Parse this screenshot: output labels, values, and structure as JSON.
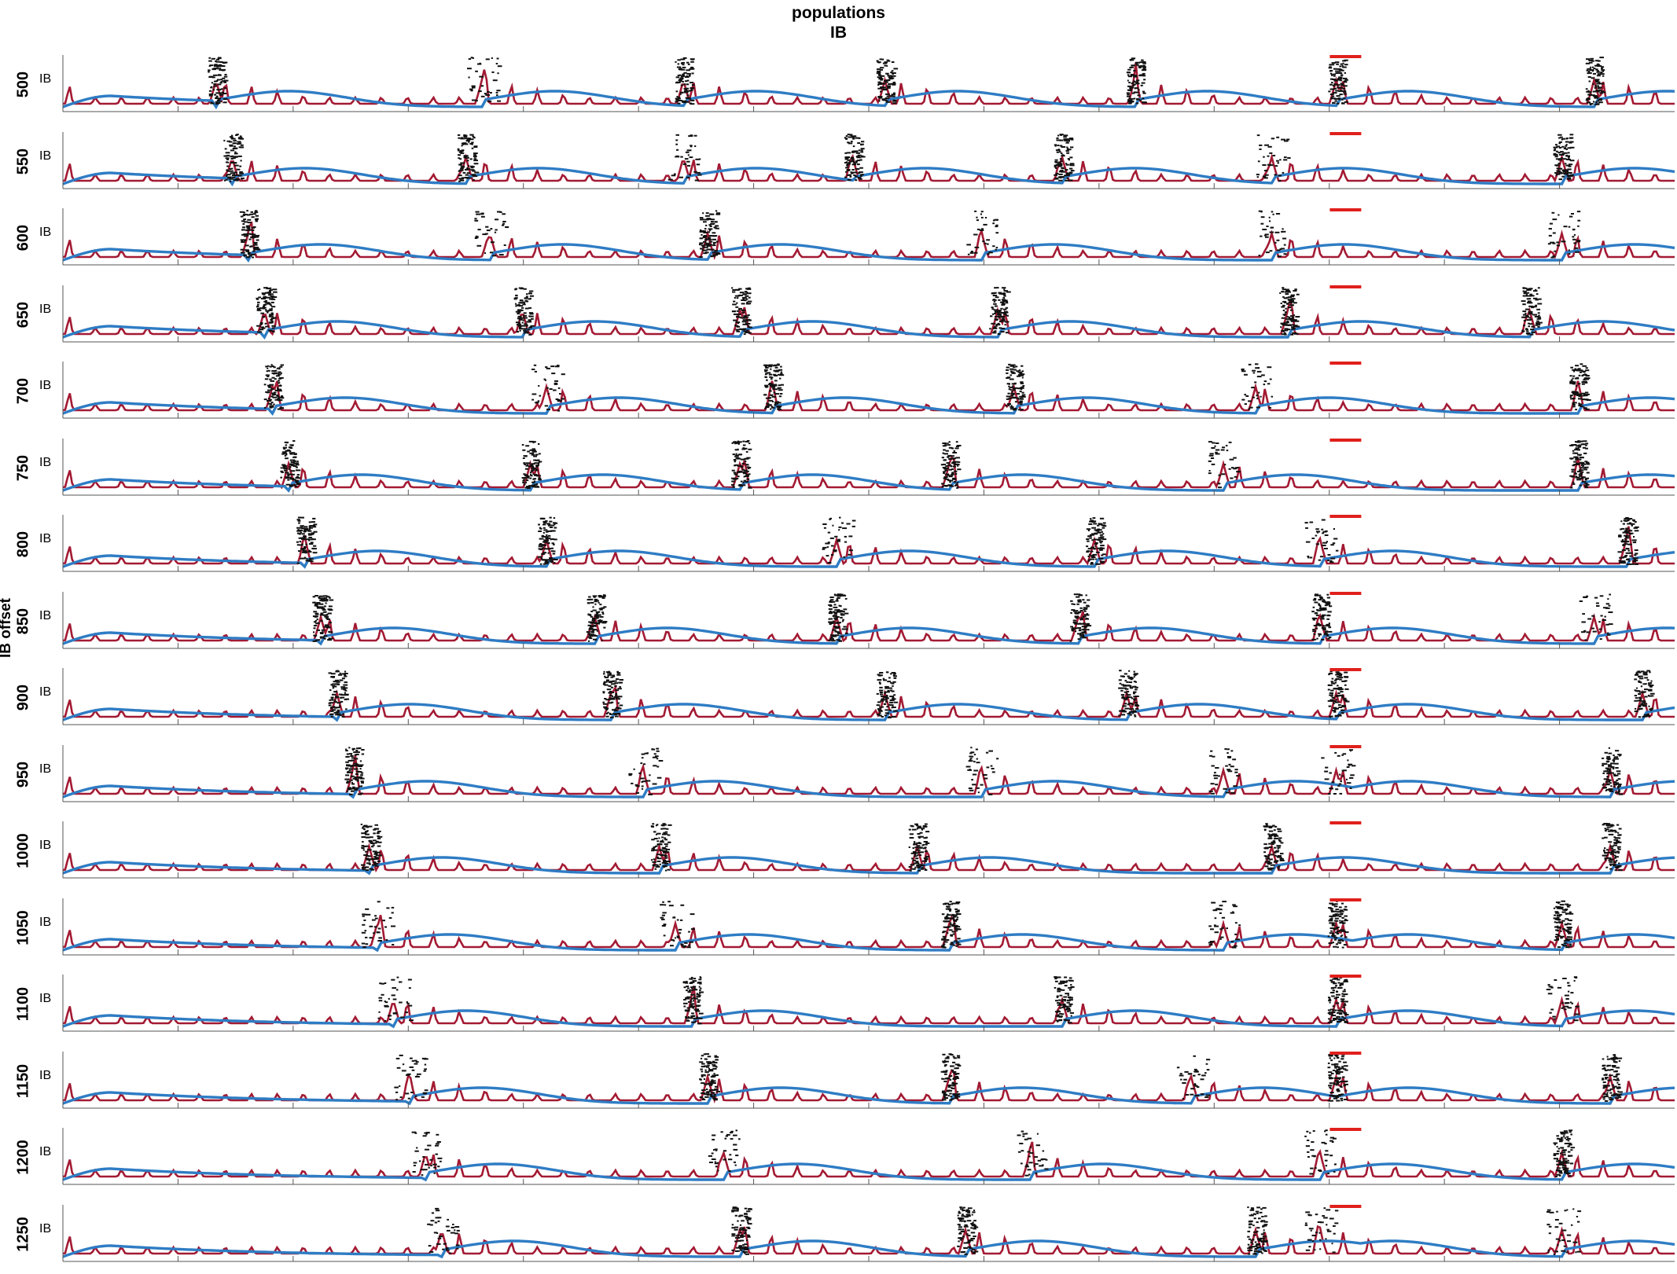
{
  "figure": {
    "title": "populations",
    "subtitle": "IB",
    "ylabel": "IB offset",
    "population_label": "IB"
  },
  "colors": {
    "trace_dark_red": "#a31a33",
    "trace_blue": "#2e7cc4",
    "raster": "#111111",
    "marker_red": "#e0201c",
    "axis": "#555555"
  },
  "chart_data": {
    "type": "line",
    "layout": "stacked panels, one per IB offset value",
    "panels": [
      "500",
      "550",
      "600",
      "650",
      "700",
      "750",
      "800",
      "850",
      "900",
      "950",
      "1000",
      "1050",
      "1100",
      "1150",
      "1200",
      "1250"
    ],
    "series": [
      {
        "name": "IB",
        "kind": "spike raster"
      }
    ],
    "grid": false,
    "legend": "none"
  }
}
